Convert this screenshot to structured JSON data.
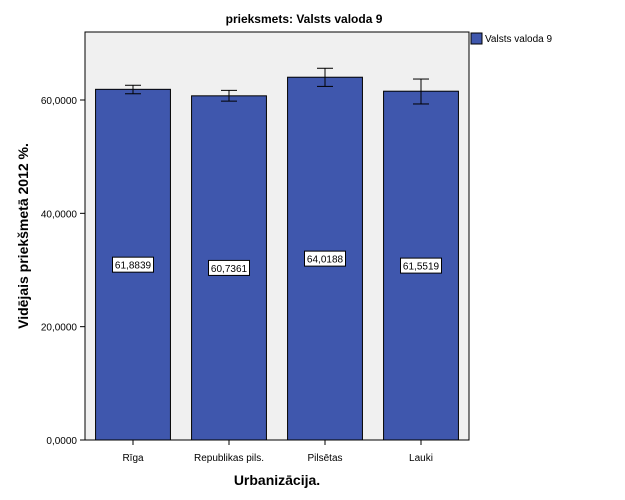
{
  "chart_data": {
    "type": "bar",
    "title": "prieksmets: Valsts valoda 9",
    "xlabel": "Urbanizācija.",
    "ylabel": "Vidējais priekšmetā 2012 %.",
    "categories": [
      "Rīga",
      "Republikas pils.",
      "Pilsētas",
      "Lauki"
    ],
    "series": [
      {
        "name": "Valsts valoda 9",
        "values": [
          61.8839,
          60.7361,
          64.0188,
          61.5519
        ],
        "value_labels": [
          "61,8839",
          "60,7361",
          "64,0188",
          "61,5519"
        ],
        "error_low": [
          61.1,
          59.8,
          62.4,
          59.3
        ],
        "error_high": [
          62.6,
          61.7,
          65.6,
          63.7
        ],
        "color": "#3F57AD"
      }
    ],
    "ylim": [
      0,
      72
    ],
    "yticks": [
      0,
      20,
      40,
      60
    ],
    "ytick_labels": [
      "0,0000",
      "20,0000",
      "40,0000",
      "60,0000"
    ],
    "grid": false,
    "legend_position": "right",
    "plot_background": "#F0F0F0",
    "bar_edge_color": "#000000"
  }
}
